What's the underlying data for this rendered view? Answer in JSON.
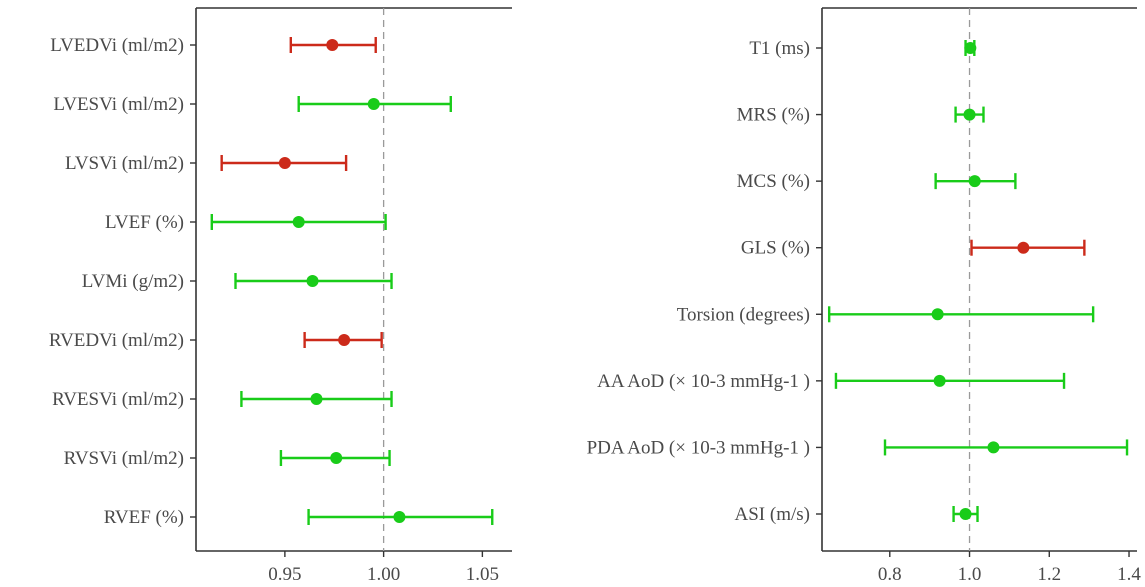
{
  "colors": {
    "significant": "#cc2a1a",
    "nonsignificant": "#19cc19",
    "reference": "#9a9a9a",
    "axis": "#333333"
  },
  "chart_data": [
    {
      "type": "forest",
      "title": "",
      "xlabel": "",
      "ylabel": "",
      "xlim": [
        0.905,
        1.065
      ],
      "xticks": [
        0.95,
        1.0,
        1.05
      ],
      "xtick_labels": [
        "0.95",
        "1.00",
        "1.05"
      ],
      "reference_line": 1.0,
      "grid": false,
      "rows": [
        {
          "label": "LVEDVi (ml/m2)",
          "estimate": 0.974,
          "lower": 0.953,
          "upper": 0.996,
          "significant": true
        },
        {
          "label": "LVESVi (ml/m2)",
          "estimate": 0.995,
          "lower": 0.957,
          "upper": 1.034,
          "significant": false
        },
        {
          "label": "LVSVi (ml/m2)",
          "estimate": 0.95,
          "lower": 0.918,
          "upper": 0.981,
          "significant": true
        },
        {
          "label": "LVEF (%)",
          "estimate": 0.957,
          "lower": 0.913,
          "upper": 1.001,
          "significant": false
        },
        {
          "label": "LVMi (g/m2)",
          "estimate": 0.964,
          "lower": 0.925,
          "upper": 1.004,
          "significant": false
        },
        {
          "label": "RVEDVi (ml/m2)",
          "estimate": 0.98,
          "lower": 0.96,
          "upper": 0.999,
          "significant": true
        },
        {
          "label": "RVESVi (ml/m2)",
          "estimate": 0.966,
          "lower": 0.928,
          "upper": 1.004,
          "significant": false
        },
        {
          "label": "RVSVi (ml/m2)",
          "estimate": 0.976,
          "lower": 0.948,
          "upper": 1.003,
          "significant": false
        },
        {
          "label": "RVEF (%)",
          "estimate": 1.008,
          "lower": 0.962,
          "upper": 1.055,
          "significant": false
        }
      ]
    },
    {
      "type": "forest",
      "title": "",
      "xlabel": "",
      "ylabel": "",
      "xlim": [
        0.63,
        1.42
      ],
      "xticks": [
        0.8,
        1.0,
        1.2,
        1.4
      ],
      "xtick_labels": [
        "0.8",
        "1.0",
        "1.2",
        "1.4"
      ],
      "reference_line": 1.0,
      "grid": false,
      "rows": [
        {
          "label": "T1 (ms)",
          "estimate": 1.002,
          "lower": 0.99,
          "upper": 1.012,
          "significant": false
        },
        {
          "label": "MRS (%)",
          "estimate": 1.0,
          "lower": 0.965,
          "upper": 1.035,
          "significant": false
        },
        {
          "label": "MCS (%)",
          "estimate": 1.013,
          "lower": 0.915,
          "upper": 1.115,
          "significant": false
        },
        {
          "label": "GLS (%)",
          "estimate": 1.135,
          "lower": 1.005,
          "upper": 1.288,
          "significant": true
        },
        {
          "label": "Torsion (degrees)",
          "estimate": 0.92,
          "lower": 0.648,
          "upper": 1.31,
          "significant": false
        },
        {
          "label": "AA AoD (× 10-3 mmHg-1 )",
          "estimate": 0.925,
          "lower": 0.665,
          "upper": 1.237,
          "significant": false
        },
        {
          "label": "PDA AoD (× 10-3 mmHg-1 )",
          "estimate": 1.06,
          "lower": 0.788,
          "upper": 1.395,
          "significant": false
        },
        {
          "label": "ASI (m/s)",
          "estimate": 0.99,
          "lower": 0.96,
          "upper": 1.02,
          "significant": false
        }
      ]
    }
  ]
}
